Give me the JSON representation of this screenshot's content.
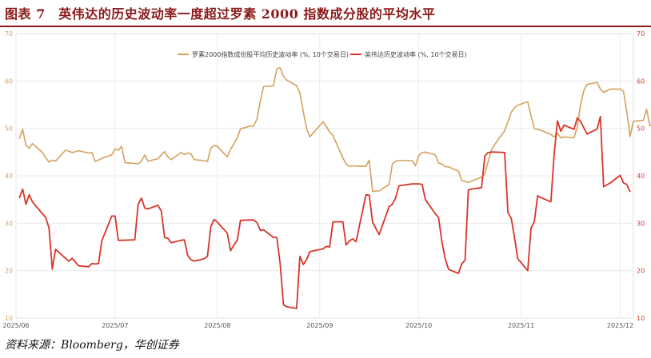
{
  "figure": {
    "title": "图表 7　英伟达的历史波动率一度超过罗素 2000 指数成分股的平均水平",
    "source": "资料来源：Bloomberg，华创证券"
  },
  "chart_data": {
    "type": "line",
    "title": "",
    "xlabel": "",
    "ylabel": "",
    "ylim": [
      10,
      70
    ],
    "yticks": [
      10,
      20,
      30,
      40,
      50,
      60,
      70
    ],
    "xlim": [
      "2025-06-01",
      "2025-12-05"
    ],
    "xticks": [
      {
        "date": "2025-06-01",
        "label": "2025/06"
      },
      {
        "date": "2025-07-01",
        "label": "2025/07"
      },
      {
        "date": "2025-08-01",
        "label": "2025/08"
      },
      {
        "date": "2025-09-01",
        "label": "2025/09"
      },
      {
        "date": "2025-10-01",
        "label": "2025/10"
      },
      {
        "date": "2025-11-01",
        "label": "2025/11"
      },
      {
        "date": "2025-12-01",
        "label": "2025/12"
      }
    ],
    "grid": true,
    "legend": "top-center",
    "series": [
      {
        "name": "罗素2000指数成份股平均历史波动率 (%, 10个交易日)",
        "color": "#d4a15e",
        "axis": "left",
        "points": [
          [
            "2025-06-02",
            47.8
          ],
          [
            "2025-06-03",
            49.8
          ],
          [
            "2025-06-04",
            46.5
          ],
          [
            "2025-06-05",
            45.8
          ],
          [
            "2025-06-06",
            46.8
          ],
          [
            "2025-06-09",
            44.9
          ],
          [
            "2025-06-10",
            43.8
          ],
          [
            "2025-06-11",
            42.9
          ],
          [
            "2025-06-12",
            43.3
          ],
          [
            "2025-06-13",
            43.1
          ],
          [
            "2025-06-16",
            45.4
          ],
          [
            "2025-06-17",
            45.2
          ],
          [
            "2025-06-18",
            44.9
          ],
          [
            "2025-06-20",
            45.3
          ],
          [
            "2025-06-23",
            44.8
          ],
          [
            "2025-06-24",
            44.9
          ],
          [
            "2025-06-25",
            43.0
          ],
          [
            "2025-06-26",
            43.3
          ],
          [
            "2025-06-27",
            43.7
          ],
          [
            "2025-06-30",
            44.4
          ],
          [
            "2025-07-01",
            45.7
          ],
          [
            "2025-07-02",
            45.4
          ],
          [
            "2025-07-03",
            46.2
          ],
          [
            "2025-07-04",
            42.8
          ],
          [
            "2025-07-07",
            42.6
          ],
          [
            "2025-07-08",
            42.5
          ],
          [
            "2025-07-09",
            43.1
          ],
          [
            "2025-07-10",
            44.4
          ],
          [
            "2025-07-11",
            43.1
          ],
          [
            "2025-07-14",
            43.6
          ],
          [
            "2025-07-15",
            44.4
          ],
          [
            "2025-07-16",
            45.1
          ],
          [
            "2025-07-17",
            44.0
          ],
          [
            "2025-07-18",
            43.4
          ],
          [
            "2025-07-21",
            44.9
          ],
          [
            "2025-07-22",
            44.5
          ],
          [
            "2025-07-23",
            44.8
          ],
          [
            "2025-07-24",
            44.6
          ],
          [
            "2025-07-25",
            43.4
          ],
          [
            "2025-07-28",
            43.2
          ],
          [
            "2025-07-29",
            43.0
          ],
          [
            "2025-07-30",
            45.8
          ],
          [
            "2025-07-31",
            46.4
          ],
          [
            "2025-08-01",
            46.2
          ],
          [
            "2025-08-04",
            44.0
          ],
          [
            "2025-08-05",
            45.6
          ],
          [
            "2025-08-06",
            46.7
          ],
          [
            "2025-08-07",
            48.0
          ],
          [
            "2025-08-08",
            49.9
          ],
          [
            "2025-08-11",
            50.5
          ],
          [
            "2025-08-12",
            50.5
          ],
          [
            "2025-08-13",
            52.0
          ],
          [
            "2025-08-14",
            55.8
          ],
          [
            "2025-08-15",
            58.8
          ],
          [
            "2025-08-18",
            59.0
          ],
          [
            "2025-08-19",
            62.6
          ],
          [
            "2025-08-20",
            62.8
          ],
          [
            "2025-08-21",
            61.0
          ],
          [
            "2025-08-22",
            60.2
          ],
          [
            "2025-08-25",
            59.0
          ],
          [
            "2025-08-26",
            57.5
          ],
          [
            "2025-08-27",
            53.5
          ],
          [
            "2025-08-28",
            50.0
          ],
          [
            "2025-08-29",
            48.2
          ],
          [
            "2025-09-02",
            51.4
          ],
          [
            "2025-09-03",
            50.4
          ],
          [
            "2025-09-04",
            49.2
          ],
          [
            "2025-09-05",
            48.5
          ],
          [
            "2025-09-08",
            43.8
          ],
          [
            "2025-09-09",
            42.5
          ],
          [
            "2025-09-10",
            42.0
          ],
          [
            "2025-09-11",
            42.1
          ],
          [
            "2025-09-12",
            42.0
          ],
          [
            "2025-09-15",
            42.0
          ],
          [
            "2025-09-16",
            43.3
          ],
          [
            "2025-09-17",
            36.7
          ],
          [
            "2025-09-18",
            36.8
          ],
          [
            "2025-09-19",
            36.8
          ],
          [
            "2025-09-22",
            38.2
          ],
          [
            "2025-09-23",
            42.5
          ],
          [
            "2025-09-24",
            43.1
          ],
          [
            "2025-09-25",
            43.2
          ],
          [
            "2025-09-26",
            43.2
          ],
          [
            "2025-09-29",
            43.2
          ],
          [
            "2025-09-30",
            42.1
          ],
          [
            "2025-10-01",
            44.3
          ],
          [
            "2025-10-02",
            44.9
          ],
          [
            "2025-10-03",
            45.0
          ],
          [
            "2025-10-06",
            44.4
          ],
          [
            "2025-10-07",
            42.7
          ],
          [
            "2025-10-08",
            42.5
          ],
          [
            "2025-10-09",
            41.9
          ],
          [
            "2025-10-10",
            41.9
          ],
          [
            "2025-10-13",
            41.0
          ],
          [
            "2025-10-14",
            39.0
          ],
          [
            "2025-10-15",
            38.8
          ],
          [
            "2025-10-16",
            38.6
          ],
          [
            "2025-10-17",
            38.9
          ],
          [
            "2025-10-20",
            39.7
          ],
          [
            "2025-10-21",
            40.4
          ],
          [
            "2025-10-22",
            43.0
          ],
          [
            "2025-10-23",
            45.5
          ],
          [
            "2025-10-24",
            46.6
          ],
          [
            "2025-10-27",
            49.5
          ],
          [
            "2025-10-28",
            51.4
          ],
          [
            "2025-10-29",
            53.4
          ],
          [
            "2025-10-30",
            54.4
          ],
          [
            "2025-10-31",
            54.9
          ],
          [
            "2025-11-03",
            55.6
          ],
          [
            "2025-11-04",
            52.6
          ],
          [
            "2025-11-05",
            50.0
          ],
          [
            "2025-11-06",
            49.8
          ],
          [
            "2025-11-07",
            49.6
          ],
          [
            "2025-11-10",
            48.7
          ],
          [
            "2025-11-11",
            48.2
          ],
          [
            "2025-11-12",
            49.0
          ],
          [
            "2025-11-13",
            48.0
          ],
          [
            "2025-11-14",
            48.2
          ],
          [
            "2025-11-17",
            48.0
          ],
          [
            "2025-11-18",
            50.3
          ],
          [
            "2025-11-19",
            55.0
          ],
          [
            "2025-11-20",
            58.0
          ],
          [
            "2025-11-21",
            59.3
          ],
          [
            "2025-11-24",
            59.7
          ],
          [
            "2025-11-25",
            58.3
          ],
          [
            "2025-11-26",
            57.6
          ],
          [
            "2025-11-28",
            58.3
          ],
          [
            "2025-12-01",
            58.3
          ],
          [
            "2025-12-02",
            57.8
          ],
          [
            "2025-12-03",
            53.5
          ],
          [
            "2025-12-04",
            48.3
          ],
          [
            "2025-12-05",
            51.5
          ],
          [
            "2025-12-08",
            51.7
          ],
          [
            "2025-12-09",
            54.0
          ],
          [
            "2025-12-10",
            50.6
          ],
          [
            "2025-12-11",
            50.5
          ],
          [
            "2025-12-12",
            49.4
          ]
        ]
      },
      {
        "name": "英伟达历史波动率 (%, 10个交易日)",
        "color": "#d8352a",
        "axis": "right",
        "points": [
          [
            "2025-06-02",
            35.3
          ],
          [
            "2025-06-03",
            37.2
          ],
          [
            "2025-06-04",
            34.0
          ],
          [
            "2025-06-05",
            36.0
          ],
          [
            "2025-06-06",
            34.5
          ],
          [
            "2025-06-09",
            32.0
          ],
          [
            "2025-06-10",
            31.2
          ],
          [
            "2025-06-11",
            29.0
          ],
          [
            "2025-06-12",
            20.3
          ],
          [
            "2025-06-13",
            24.5
          ],
          [
            "2025-06-16",
            22.6
          ],
          [
            "2025-06-17",
            22.0
          ],
          [
            "2025-06-18",
            22.6
          ],
          [
            "2025-06-20",
            21.0
          ],
          [
            "2025-06-23",
            20.8
          ],
          [
            "2025-06-24",
            21.5
          ],
          [
            "2025-06-25",
            21.4
          ],
          [
            "2025-06-26",
            21.5
          ],
          [
            "2025-06-27",
            26.3
          ],
          [
            "2025-06-30",
            31.5
          ],
          [
            "2025-07-01",
            31.5
          ],
          [
            "2025-07-02",
            26.4
          ],
          [
            "2025-07-03",
            26.4
          ],
          [
            "2025-07-07",
            26.5
          ],
          [
            "2025-07-08",
            34.0
          ],
          [
            "2025-07-09",
            35.3
          ],
          [
            "2025-07-10",
            33.2
          ],
          [
            "2025-07-11",
            33.0
          ],
          [
            "2025-07-14",
            33.8
          ],
          [
            "2025-07-15",
            32.6
          ],
          [
            "2025-07-16",
            27.0
          ],
          [
            "2025-07-17",
            26.8
          ],
          [
            "2025-07-18",
            25.9
          ],
          [
            "2025-07-21",
            26.4
          ],
          [
            "2025-07-22",
            26.5
          ],
          [
            "2025-07-23",
            23.2
          ],
          [
            "2025-07-24",
            22.3
          ],
          [
            "2025-07-25",
            22.0
          ],
          [
            "2025-07-28",
            22.5
          ],
          [
            "2025-07-29",
            23.0
          ],
          [
            "2025-07-30",
            29.3
          ],
          [
            "2025-07-31",
            30.8
          ],
          [
            "2025-08-01",
            30.2
          ],
          [
            "2025-08-04",
            27.9
          ],
          [
            "2025-08-05",
            24.2
          ],
          [
            "2025-08-06",
            25.4
          ],
          [
            "2025-08-07",
            26.4
          ],
          [
            "2025-08-08",
            30.6
          ],
          [
            "2025-08-11",
            30.7
          ],
          [
            "2025-08-12",
            30.7
          ],
          [
            "2025-08-13",
            30.1
          ],
          [
            "2025-08-14",
            28.5
          ],
          [
            "2025-08-15",
            28.6
          ],
          [
            "2025-08-18",
            27.0
          ],
          [
            "2025-08-19",
            27.0
          ],
          [
            "2025-08-20",
            21.5
          ],
          [
            "2025-08-21",
            12.8
          ],
          [
            "2025-08-22",
            12.4
          ],
          [
            "2025-08-25",
            12.0
          ],
          [
            "2025-08-26",
            23.0
          ],
          [
            "2025-08-27",
            21.3
          ],
          [
            "2025-08-28",
            22.3
          ],
          [
            "2025-08-29",
            24.0
          ],
          [
            "2025-09-02",
            24.6
          ],
          [
            "2025-09-03",
            25.1
          ],
          [
            "2025-09-04",
            25.0
          ],
          [
            "2025-09-05",
            30.3
          ],
          [
            "2025-09-08",
            30.3
          ],
          [
            "2025-09-09",
            25.4
          ],
          [
            "2025-09-10",
            26.3
          ],
          [
            "2025-09-11",
            26.7
          ],
          [
            "2025-09-12",
            26.1
          ],
          [
            "2025-09-15",
            36.0
          ],
          [
            "2025-09-16",
            35.9
          ],
          [
            "2025-09-17",
            30.2
          ],
          [
            "2025-09-18",
            28.9
          ],
          [
            "2025-09-19",
            27.6
          ],
          [
            "2025-09-22",
            33.5
          ],
          [
            "2025-09-23",
            34.0
          ],
          [
            "2025-09-24",
            35.4
          ],
          [
            "2025-09-25",
            37.9
          ],
          [
            "2025-09-26",
            38.0
          ],
          [
            "2025-09-29",
            38.3
          ],
          [
            "2025-09-30",
            38.3
          ],
          [
            "2025-10-01",
            38.3
          ],
          [
            "2025-10-02",
            38.2
          ],
          [
            "2025-10-03",
            35.0
          ],
          [
            "2025-10-06",
            32.0
          ],
          [
            "2025-10-07",
            31.2
          ],
          [
            "2025-10-08",
            26.0
          ],
          [
            "2025-10-09",
            22.5
          ],
          [
            "2025-10-10",
            20.3
          ],
          [
            "2025-10-13",
            19.4
          ],
          [
            "2025-10-14",
            21.4
          ],
          [
            "2025-10-15",
            22.2
          ],
          [
            "2025-10-16",
            37.0
          ],
          [
            "2025-10-17",
            37.2
          ],
          [
            "2025-10-20",
            37.5
          ],
          [
            "2025-10-21",
            44.2
          ],
          [
            "2025-10-22",
            44.9
          ],
          [
            "2025-10-23",
            45.0
          ],
          [
            "2025-10-24",
            45.0
          ],
          [
            "2025-10-27",
            44.9
          ],
          [
            "2025-10-28",
            32.3
          ],
          [
            "2025-10-29",
            31.0
          ],
          [
            "2025-10-30",
            26.9
          ],
          [
            "2025-10-31",
            22.5
          ],
          [
            "2025-11-03",
            20.0
          ],
          [
            "2025-11-04",
            29.0
          ],
          [
            "2025-11-05",
            30.3
          ],
          [
            "2025-11-06",
            35.8
          ],
          [
            "2025-11-07",
            35.4
          ],
          [
            "2025-11-10",
            34.5
          ],
          [
            "2025-11-11",
            44.5
          ],
          [
            "2025-11-12",
            51.6
          ],
          [
            "2025-11-13",
            49.4
          ],
          [
            "2025-11-14",
            50.7
          ],
          [
            "2025-11-17",
            49.8
          ],
          [
            "2025-11-18",
            52.2
          ],
          [
            "2025-11-19",
            51.5
          ],
          [
            "2025-11-20",
            50.1
          ],
          [
            "2025-11-21",
            48.8
          ],
          [
            "2025-11-24",
            49.9
          ],
          [
            "2025-11-25",
            52.5
          ],
          [
            "2025-11-26",
            37.7
          ],
          [
            "2025-11-28",
            38.5
          ],
          [
            "2025-12-01",
            40.1
          ],
          [
            "2025-12-02",
            38.5
          ],
          [
            "2025-12-03",
            38.2
          ],
          [
            "2025-12-04",
            36.6
          ]
        ]
      }
    ]
  }
}
